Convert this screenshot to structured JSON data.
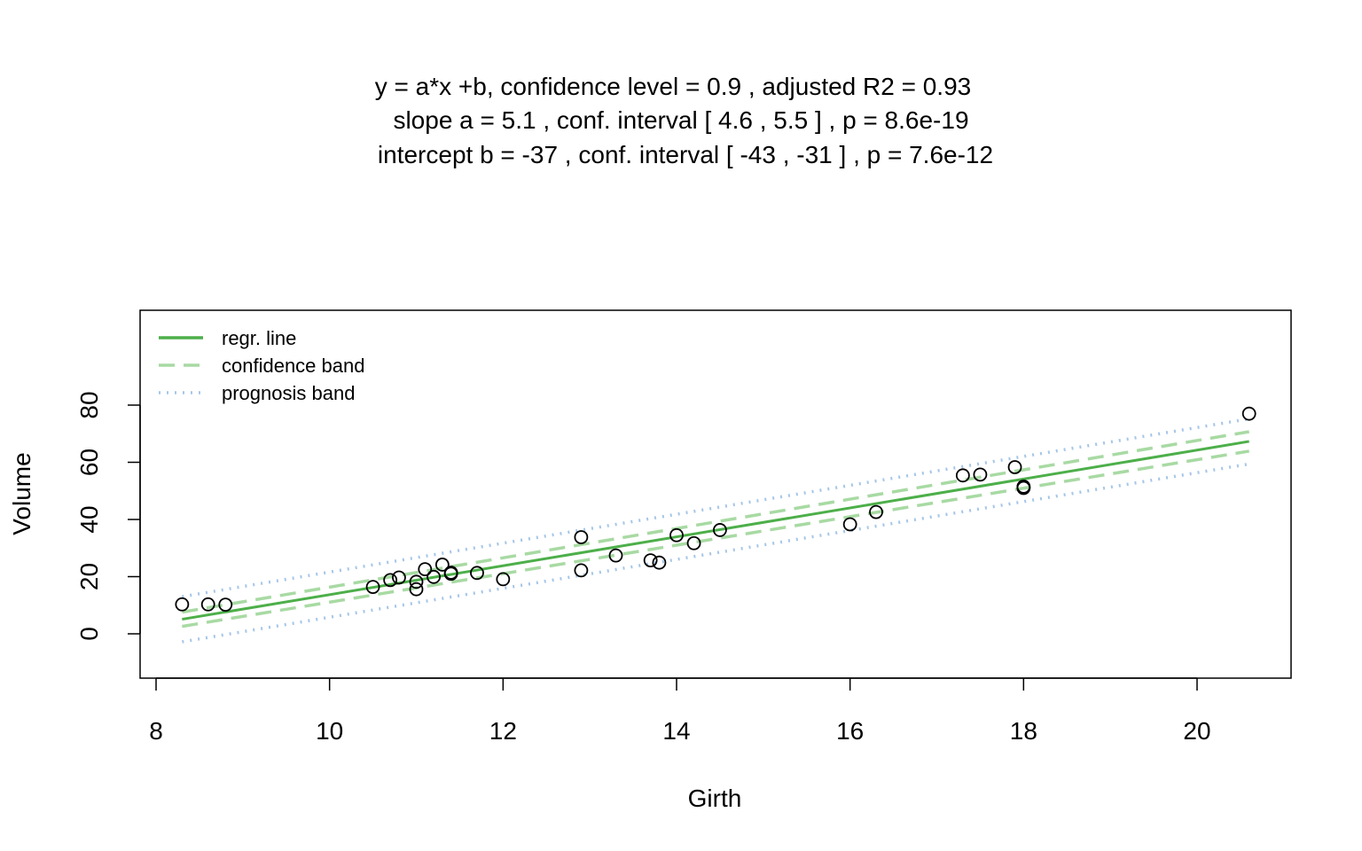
{
  "chart_data": {
    "type": "scatter",
    "title_lines": [
      "y = a*x +b, confidence level =  0.9 , adjusted R2 =  0.93",
      "slope a =  5.1 , conf. interval [ 4.6 , 5.5 ] , p =  8.6e-19",
      "intercept b =  -37 , conf. interval [ -43 , -31 ] , p =  7.6e-12"
    ],
    "xlabel": "Girth",
    "ylabel": "Volume",
    "xlim": [
      8,
      21
    ],
    "ylim": [
      -15,
      100
    ],
    "xticks": [
      8,
      10,
      12,
      14,
      16,
      18,
      20
    ],
    "yticks": [
      0,
      20,
      40,
      60,
      80
    ],
    "grid": false,
    "legend_position": "top-left",
    "legend": [
      {
        "label": "regr. line",
        "style": "solid",
        "color": "#4DAF4A"
      },
      {
        "label": "confidence band",
        "style": "dashed",
        "color": "#A8DAA3"
      },
      {
        "label": "prognosis band",
        "style": "dotted",
        "color": "#A6C6E8"
      }
    ],
    "points": [
      {
        "x": 8.3,
        "y": 10.3
      },
      {
        "x": 8.6,
        "y": 10.3
      },
      {
        "x": 8.8,
        "y": 10.2
      },
      {
        "x": 10.5,
        "y": 16.4
      },
      {
        "x": 10.7,
        "y": 18.8
      },
      {
        "x": 10.8,
        "y": 19.7
      },
      {
        "x": 11.0,
        "y": 15.6
      },
      {
        "x": 11.0,
        "y": 18.2
      },
      {
        "x": 11.1,
        "y": 22.6
      },
      {
        "x": 11.2,
        "y": 19.9
      },
      {
        "x": 11.3,
        "y": 24.2
      },
      {
        "x": 11.4,
        "y": 21.0
      },
      {
        "x": 11.4,
        "y": 21.4
      },
      {
        "x": 11.7,
        "y": 21.3
      },
      {
        "x": 12.0,
        "y": 19.1
      },
      {
        "x": 12.9,
        "y": 22.2
      },
      {
        "x": 12.9,
        "y": 33.8
      },
      {
        "x": 13.3,
        "y": 27.4
      },
      {
        "x": 13.7,
        "y": 25.7
      },
      {
        "x": 13.8,
        "y": 24.9
      },
      {
        "x": 14.0,
        "y": 34.5
      },
      {
        "x": 14.2,
        "y": 31.7
      },
      {
        "x": 14.5,
        "y": 36.3
      },
      {
        "x": 16.0,
        "y": 38.3
      },
      {
        "x": 16.3,
        "y": 42.6
      },
      {
        "x": 17.3,
        "y": 55.4
      },
      {
        "x": 17.5,
        "y": 55.7
      },
      {
        "x": 17.9,
        "y": 58.3
      },
      {
        "x": 18.0,
        "y": 51.5
      },
      {
        "x": 18.0,
        "y": 51.0
      },
      {
        "x": 20.6,
        "y": 77.0
      }
    ],
    "regression_line": {
      "x": [
        8.3,
        20.6
      ],
      "y": [
        5.1,
        67.3
      ]
    },
    "confidence_band": {
      "upper": {
        "x": [
          8.3,
          20.6
        ],
        "y": [
          7.6,
          70.7
        ]
      },
      "lower": {
        "x": [
          8.3,
          20.6
        ],
        "y": [
          2.6,
          63.9
        ]
      }
    },
    "prognosis_band": {
      "upper": {
        "x": [
          8.3,
          20.6
        ],
        "y": [
          13.0,
          75.2
        ]
      },
      "lower": {
        "x": [
          8.3,
          20.6
        ],
        "y": [
          -2.8,
          59.4
        ]
      }
    },
    "colors": {
      "regression": "#4DAF4A",
      "confidence": "#A8DAA3",
      "prognosis": "#A6C6E8",
      "points": "#000000"
    }
  }
}
